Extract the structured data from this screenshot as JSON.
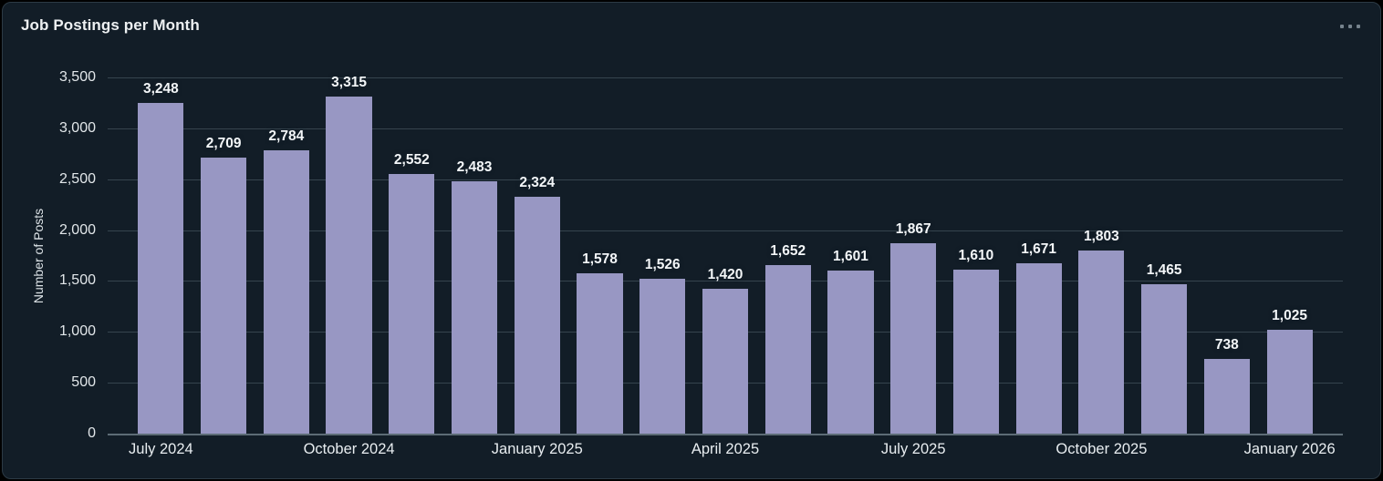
{
  "header": {
    "title": "Job Postings per Month",
    "menu_icon": "ellipsis-icon"
  },
  "colors": {
    "bar": "#9897c3",
    "card_background": "#121d27",
    "card_border": "#2c3a45",
    "gridline": "#36444e",
    "axis_line": "#5d6c76",
    "text": "#e8edf0"
  },
  "chart_data": {
    "type": "bar",
    "title": "Job Postings per Month",
    "xlabel": "",
    "ylabel": "Number of Posts",
    "ylim": [
      0,
      3500
    ],
    "grid": true,
    "legend": false,
    "values": [
      3248,
      2709,
      2784,
      3315,
      2552,
      2483,
      2324,
      1578,
      1526,
      1420,
      1652,
      1601,
      1867,
      1610,
      1671,
      1803,
      1465,
      738,
      1025
    ],
    "value_labels": [
      "3,248",
      "2,709",
      "2,784",
      "3,315",
      "2,552",
      "2,483",
      "2,324",
      "1,578",
      "1,526",
      "1,420",
      "1,652",
      "1,601",
      "1,867",
      "1,610",
      "1,671",
      "1,803",
      "1,465",
      "738",
      "1,025"
    ],
    "x_ticks": [
      {
        "index": 0,
        "label": "July 2024"
      },
      {
        "index": 3,
        "label": "October 2024"
      },
      {
        "index": 6,
        "label": "January 2025"
      },
      {
        "index": 9,
        "label": "April 2025"
      },
      {
        "index": 12,
        "label": "July 2025"
      },
      {
        "index": 15,
        "label": "October 2025"
      },
      {
        "index": 18,
        "label": "January 2026"
      }
    ],
    "y_ticks": [
      {
        "value": 0,
        "label": "0"
      },
      {
        "value": 500,
        "label": "500"
      },
      {
        "value": 1000,
        "label": "1,000"
      },
      {
        "value": 1500,
        "label": "1,500"
      },
      {
        "value": 2000,
        "label": "2,000"
      },
      {
        "value": 2500,
        "label": "2,500"
      },
      {
        "value": 3000,
        "label": "3,000"
      },
      {
        "value": 3500,
        "label": "3,500"
      }
    ]
  }
}
